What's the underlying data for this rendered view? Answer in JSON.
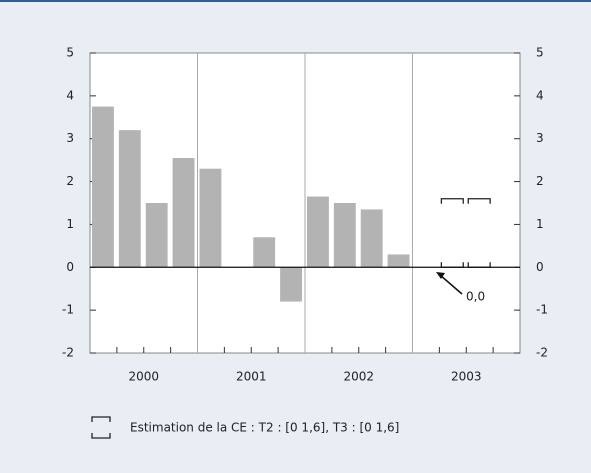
{
  "chart_data": {
    "type": "bar",
    "categories": [
      "2000",
      "2001",
      "2002",
      "2003"
    ],
    "values": [
      [
        3.75,
        3.2,
        1.5,
        2.55
      ],
      [
        2.3,
        0,
        0.7,
        -0.8
      ],
      [
        1.65,
        1.5,
        1.35,
        0.3
      ],
      [
        null,
        null,
        null,
        null
      ]
    ],
    "estimates": [
      null,
      null,
      null,
      [
        null,
        [
          0,
          1.6
        ],
        [
          0,
          1.6
        ],
        null
      ]
    ],
    "estimate_label": "Estimation de la CE : T2 : [0  1,6], T3 : [0  1,6]",
    "annotation": "0,0",
    "color": "#b3b3b3",
    "ylim": [
      -2,
      5
    ],
    "yticks": [
      -2,
      -1,
      0,
      1,
      2,
      3,
      4,
      5
    ],
    "y2lim": [
      -2,
      5
    ],
    "y2ticks": [
      -2,
      -1,
      0,
      1,
      2,
      3,
      4,
      5
    ],
    "grid": true
  }
}
